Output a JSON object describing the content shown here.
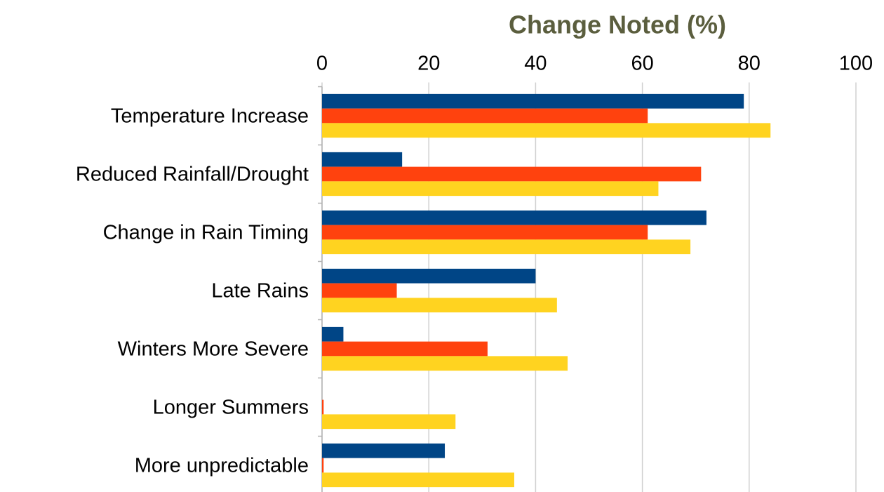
{
  "chart_data": {
    "type": "hbar",
    "title": "Change Noted (%)",
    "categories": [
      "Temperature Increase",
      "Reduced Rainfall/Drought",
      "Change in Rain Timing",
      "Late Rains",
      "Winters More Severe",
      "Longer Summers",
      "More unpredictable"
    ],
    "series": [
      {
        "color": "#004586",
        "values": [
          79,
          15,
          72,
          40,
          4,
          0,
          23
        ]
      },
      {
        "color": "#ff420e",
        "values": [
          61,
          71,
          61,
          14,
          31,
          0.3,
          0.3
        ]
      },
      {
        "color": "#ffd320",
        "values": [
          84,
          63,
          69,
          44,
          46,
          25,
          36
        ]
      }
    ],
    "xlim": [
      0,
      100
    ],
    "xticks": [
      0,
      20,
      40,
      60,
      80,
      100
    ],
    "grid": true
  }
}
